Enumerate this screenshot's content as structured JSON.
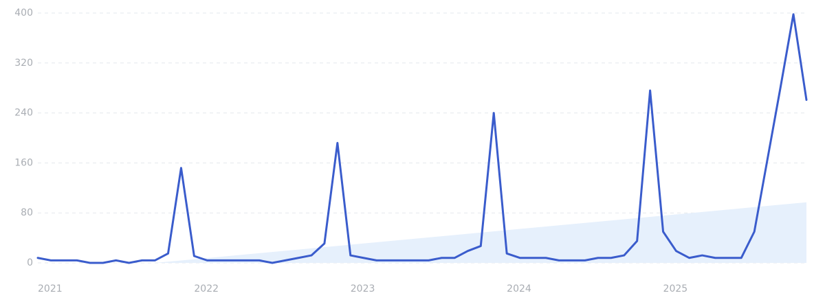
{
  "chart_data": {
    "type": "line",
    "categories": [
      "2021",
      null,
      null,
      null,
      null,
      null,
      null,
      null,
      null,
      null,
      null,
      null,
      "2022",
      null,
      null,
      null,
      null,
      null,
      null,
      null,
      null,
      null,
      null,
      null,
      "2023",
      null,
      null,
      null,
      null,
      null,
      null,
      null,
      null,
      null,
      null,
      null,
      "2024",
      null,
      null,
      null,
      null,
      null,
      null,
      null,
      null,
      null,
      null,
      null,
      "2025",
      null,
      null,
      null,
      null,
      null,
      null,
      null,
      null,
      null,
      null,
      null
    ],
    "series": [
      {
        "color": "#3a5ccc",
        "values": [
          8,
          4,
          4,
          4,
          0,
          0,
          4,
          0,
          4,
          4,
          15,
          152,
          11,
          4,
          4,
          4,
          4,
          4,
          0,
          4,
          8,
          12,
          31,
          192,
          12,
          8,
          4,
          4,
          4,
          4,
          4,
          8,
          8,
          19,
          27,
          240,
          15,
          8,
          8,
          8,
          4,
          4,
          4,
          8,
          8,
          12,
          35,
          276,
          50,
          19,
          8,
          12,
          8,
          8,
          8,
          50,
          165,
          280,
          398,
          261
        ]
      }
    ],
    "trend": {
      "color": "#e6f0fc",
      "start": 9,
      "end": 59,
      "values": [
        0,
        97
      ]
    },
    "ylim": [
      0,
      400
    ],
    "yticks": [
      0,
      80,
      160,
      240,
      320,
      400
    ],
    "grid": true
  }
}
